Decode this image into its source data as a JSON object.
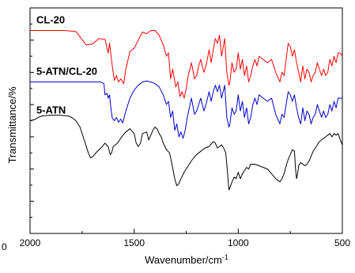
{
  "chart_data": {
    "type": "line",
    "title": "",
    "xlabel": "Wavenumber/cm",
    "xlabel_sup": "-1",
    "ylabel": "Transmittance/%",
    "xlim": [
      2000,
      500
    ],
    "x_reversed": true,
    "x_ticks": [
      2000,
      1500,
      1000,
      500
    ],
    "cut_tick_label": "0",
    "y_ticks_labeled": false,
    "grid": false,
    "legend": "none (labels placed above curves)",
    "series": [
      {
        "name": "CL-20",
        "color": "#ff0000",
        "points": [
          [
            2000,
            63
          ],
          [
            1920,
            63
          ],
          [
            1840,
            63
          ],
          [
            1780,
            62.7
          ],
          [
            1760,
            61
          ],
          [
            1730,
            58.5
          ],
          [
            1700,
            58.8
          ],
          [
            1670,
            60.5
          ],
          [
            1640,
            60.2
          ],
          [
            1625,
            56
          ],
          [
            1618,
            59
          ],
          [
            1605,
            52
          ],
          [
            1595,
            47.5
          ],
          [
            1585,
            49
          ],
          [
            1575,
            47
          ],
          [
            1565,
            48
          ],
          [
            1550,
            46.5
          ],
          [
            1540,
            51
          ],
          [
            1520,
            56.5
          ],
          [
            1500,
            57.5
          ],
          [
            1480,
            60
          ],
          [
            1460,
            62.5
          ],
          [
            1440,
            62
          ],
          [
            1420,
            63
          ],
          [
            1400,
            63
          ],
          [
            1380,
            61.5
          ],
          [
            1360,
            58.5
          ],
          [
            1345,
            55
          ],
          [
            1335,
            56
          ],
          [
            1325,
            48
          ],
          [
            1315,
            51
          ],
          [
            1300,
            45.5
          ],
          [
            1290,
            47
          ],
          [
            1280,
            42.5
          ],
          [
            1270,
            44
          ],
          [
            1260,
            42
          ],
          [
            1250,
            45
          ],
          [
            1240,
            49
          ],
          [
            1225,
            53
          ],
          [
            1210,
            48
          ],
          [
            1200,
            49
          ],
          [
            1190,
            52
          ],
          [
            1180,
            54
          ],
          [
            1165,
            50
          ],
          [
            1155,
            52
          ],
          [
            1140,
            57
          ],
          [
            1130,
            53
          ],
          [
            1120,
            57
          ],
          [
            1110,
            60.5
          ],
          [
            1100,
            59
          ],
          [
            1090,
            61.5
          ],
          [
            1080,
            55
          ],
          [
            1065,
            60.5
          ],
          [
            1055,
            50
          ],
          [
            1045,
            46
          ],
          [
            1040,
            47
          ],
          [
            1030,
            53
          ],
          [
            1020,
            50
          ],
          [
            1010,
            51
          ],
          [
            1000,
            56
          ],
          [
            990,
            51
          ],
          [
            980,
            54
          ],
          [
            970,
            49
          ],
          [
            960,
            52
          ],
          [
            950,
            47
          ],
          [
            940,
            49
          ],
          [
            930,
            52
          ],
          [
            920,
            54
          ],
          [
            910,
            52
          ],
          [
            900,
            55
          ],
          [
            880,
            54
          ],
          [
            860,
            53
          ],
          [
            840,
            54
          ],
          [
            820,
            50
          ],
          [
            800,
            47
          ],
          [
            790,
            50
          ],
          [
            780,
            49
          ],
          [
            770,
            54
          ],
          [
            760,
            59
          ],
          [
            750,
            58
          ],
          [
            740,
            55
          ],
          [
            730,
            57
          ],
          [
            720,
            53
          ],
          [
            710,
            50
          ],
          [
            700,
            47
          ],
          [
            690,
            52
          ],
          [
            680,
            48
          ],
          [
            670,
            51
          ],
          [
            660,
            50
          ],
          [
            650,
            47
          ],
          [
            640,
            49
          ],
          [
            630,
            50
          ],
          [
            620,
            53
          ],
          [
            610,
            51
          ],
          [
            600,
            49
          ],
          [
            590,
            51
          ],
          [
            580,
            49
          ],
          [
            570,
            50
          ],
          [
            560,
            54
          ],
          [
            550,
            52
          ],
          [
            540,
            55
          ],
          [
            530,
            53
          ],
          [
            520,
            56
          ],
          [
            510,
            56
          ],
          [
            500,
            55
          ]
        ]
      },
      {
        "name": "5-ATN/CL-20",
        "color": "#0000cc",
        "points": [
          [
            2000,
            47
          ],
          [
            1900,
            47
          ],
          [
            1800,
            47
          ],
          [
            1700,
            47
          ],
          [
            1660,
            47
          ],
          [
            1645,
            46.5
          ],
          [
            1640,
            43
          ],
          [
            1630,
            43.5
          ],
          [
            1625,
            42
          ],
          [
            1618,
            43
          ],
          [
            1612,
            39
          ],
          [
            1605,
            35.8
          ],
          [
            1595,
            35
          ],
          [
            1585,
            36
          ],
          [
            1575,
            34.5
          ],
          [
            1565,
            35.5
          ],
          [
            1555,
            34.3
          ],
          [
            1540,
            38
          ],
          [
            1520,
            42
          ],
          [
            1500,
            44.5
          ],
          [
            1480,
            46
          ],
          [
            1460,
            47
          ],
          [
            1440,
            47.3
          ],
          [
            1420,
            47
          ],
          [
            1400,
            46.5
          ],
          [
            1380,
            45.5
          ],
          [
            1360,
            43
          ],
          [
            1345,
            40
          ],
          [
            1335,
            41
          ],
          [
            1325,
            36
          ],
          [
            1315,
            38
          ],
          [
            1305,
            32
          ],
          [
            1295,
            34
          ],
          [
            1285,
            30
          ],
          [
            1275,
            31.5
          ],
          [
            1265,
            29.5
          ],
          [
            1255,
            32
          ],
          [
            1245,
            36
          ],
          [
            1235,
            39
          ],
          [
            1225,
            42
          ],
          [
            1210,
            37
          ],
          [
            1200,
            38
          ],
          [
            1190,
            40
          ],
          [
            1180,
            42
          ],
          [
            1165,
            38
          ],
          [
            1155,
            40
          ],
          [
            1140,
            44
          ],
          [
            1130,
            41
          ],
          [
            1120,
            44
          ],
          [
            1110,
            46
          ],
          [
            1100,
            44
          ],
          [
            1090,
            46
          ],
          [
            1080,
            42
          ],
          [
            1065,
            46
          ],
          [
            1055,
            36
          ],
          [
            1045,
            33
          ],
          [
            1040,
            34
          ],
          [
            1030,
            39
          ],
          [
            1020,
            37
          ],
          [
            1010,
            38
          ],
          [
            1000,
            43
          ],
          [
            990,
            38
          ],
          [
            980,
            41
          ],
          [
            970,
            36
          ],
          [
            960,
            39
          ],
          [
            950,
            34
          ],
          [
            940,
            36
          ],
          [
            930,
            40
          ],
          [
            920,
            42
          ],
          [
            910,
            40
          ],
          [
            900,
            43
          ],
          [
            880,
            42
          ],
          [
            860,
            41
          ],
          [
            840,
            42
          ],
          [
            820,
            37
          ],
          [
            800,
            34
          ],
          [
            790,
            37
          ],
          [
            780,
            36
          ],
          [
            770,
            40
          ],
          [
            760,
            44
          ],
          [
            750,
            43
          ],
          [
            740,
            41
          ],
          [
            730,
            43
          ],
          [
            720,
            39
          ],
          [
            710,
            36
          ],
          [
            700,
            34
          ],
          [
            690,
            39
          ],
          [
            680,
            35
          ],
          [
            670,
            38
          ],
          [
            660,
            37
          ],
          [
            650,
            34
          ],
          [
            640,
            36
          ],
          [
            630,
            37
          ],
          [
            620,
            40
          ],
          [
            610,
            38
          ],
          [
            600,
            36
          ],
          [
            590,
            38
          ],
          [
            580,
            36
          ],
          [
            570,
            37
          ],
          [
            560,
            40
          ],
          [
            550,
            38
          ],
          [
            540,
            41
          ],
          [
            530,
            39
          ],
          [
            520,
            42
          ],
          [
            510,
            42
          ],
          [
            500,
            42
          ]
        ]
      },
      {
        "name": "5-ATN",
        "color": "#000000",
        "points": [
          [
            2000,
            35
          ],
          [
            1980,
            35.3
          ],
          [
            1960,
            36
          ],
          [
            1940,
            36.5
          ],
          [
            1900,
            36.7
          ],
          [
            1860,
            36.7
          ],
          [
            1820,
            36.5
          ],
          [
            1800,
            36
          ],
          [
            1780,
            35
          ],
          [
            1760,
            33
          ],
          [
            1740,
            29
          ],
          [
            1720,
            25
          ],
          [
            1710,
            23.5
          ],
          [
            1700,
            23.8
          ],
          [
            1690,
            24.5
          ],
          [
            1680,
            25.3
          ],
          [
            1660,
            26.5
          ],
          [
            1640,
            28
          ],
          [
            1625,
            27
          ],
          [
            1615,
            24.5
          ],
          [
            1608,
            25
          ],
          [
            1600,
            27
          ],
          [
            1590,
            27.5
          ],
          [
            1580,
            28
          ],
          [
            1560,
            30
          ],
          [
            1540,
            31.5
          ],
          [
            1520,
            32.5
          ],
          [
            1500,
            31
          ],
          [
            1490,
            28
          ],
          [
            1480,
            27
          ],
          [
            1470,
            28
          ],
          [
            1460,
            31
          ],
          [
            1440,
            31.5
          ],
          [
            1430,
            29
          ],
          [
            1420,
            30.5
          ],
          [
            1410,
            32
          ],
          [
            1400,
            33
          ],
          [
            1390,
            32.5
          ],
          [
            1380,
            31
          ],
          [
            1370,
            30
          ],
          [
            1360,
            28
          ],
          [
            1345,
            26
          ],
          [
            1330,
            25
          ],
          [
            1320,
            22
          ],
          [
            1305,
            17
          ],
          [
            1295,
            14.8
          ],
          [
            1285,
            15.5
          ],
          [
            1275,
            17
          ],
          [
            1260,
            19
          ],
          [
            1240,
            21
          ],
          [
            1220,
            23
          ],
          [
            1200,
            24.5
          ],
          [
            1180,
            25.5
          ],
          [
            1160,
            26.5
          ],
          [
            1140,
            27
          ],
          [
            1130,
            27.8
          ],
          [
            1120,
            28.5
          ],
          [
            1110,
            28
          ],
          [
            1100,
            26.5
          ],
          [
            1090,
            27
          ],
          [
            1080,
            27.5
          ],
          [
            1070,
            26.5
          ],
          [
            1060,
            25
          ],
          [
            1053,
            20
          ],
          [
            1045,
            13.5
          ],
          [
            1040,
            14.2
          ],
          [
            1030,
            16
          ],
          [
            1020,
            17.5
          ],
          [
            1010,
            17
          ],
          [
            1000,
            19
          ],
          [
            990,
            17
          ],
          [
            980,
            18.5
          ],
          [
            970,
            19.5
          ],
          [
            960,
            20.5
          ],
          [
            950,
            20
          ],
          [
            940,
            21.5
          ],
          [
            920,
            21.5
          ],
          [
            900,
            21
          ],
          [
            880,
            20.5
          ],
          [
            860,
            20
          ],
          [
            840,
            18.5
          ],
          [
            820,
            17
          ],
          [
            800,
            16
          ],
          [
            790,
            17
          ],
          [
            780,
            18.5
          ],
          [
            770,
            21
          ],
          [
            760,
            23
          ],
          [
            750,
            24.5
          ],
          [
            740,
            26
          ],
          [
            730,
            25.5
          ],
          [
            725,
            20
          ],
          [
            720,
            17
          ],
          [
            715,
            18.5
          ],
          [
            710,
            21
          ],
          [
            700,
            22
          ],
          [
            690,
            21.5
          ],
          [
            680,
            21
          ],
          [
            670,
            21.5
          ],
          [
            660,
            22.5
          ],
          [
            650,
            24
          ],
          [
            640,
            25.5
          ],
          [
            630,
            26.5
          ],
          [
            620,
            27.5
          ],
          [
            610,
            28.5
          ],
          [
            600,
            29
          ],
          [
            590,
            29.5
          ],
          [
            580,
            30
          ],
          [
            570,
            30.5
          ],
          [
            560,
            31
          ],
          [
            550,
            30
          ],
          [
            540,
            31
          ],
          [
            530,
            30.5
          ],
          [
            520,
            31
          ],
          [
            510,
            29
          ],
          [
            500,
            27.5
          ]
        ]
      }
    ]
  }
}
